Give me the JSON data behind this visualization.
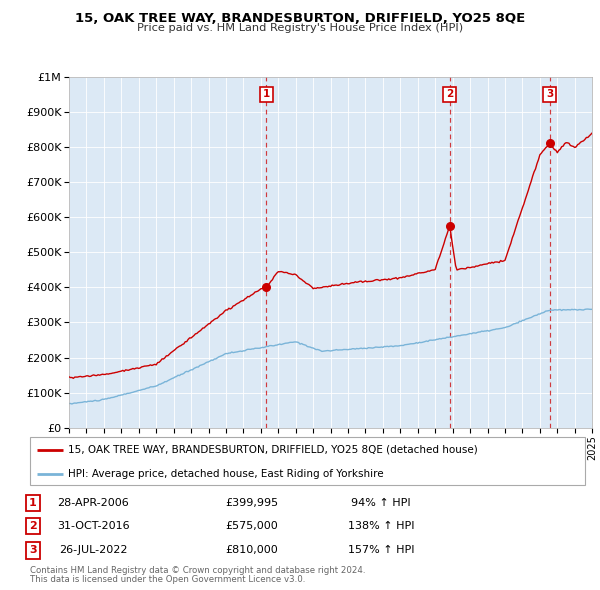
{
  "title": "15, OAK TREE WAY, BRANDESBURTON, DRIFFIELD, YO25 8QE",
  "subtitle": "Price paid vs. HM Land Registry's House Price Index (HPI)",
  "background_color": "#dce9f5",
  "hpi_line_color": "#7ab4d8",
  "price_line_color": "#cc0000",
  "marker_color": "#cc0000",
  "ymax": 1000000,
  "ytick_vals": [
    0,
    100000,
    200000,
    300000,
    400000,
    500000,
    600000,
    700000,
    800000,
    900000,
    1000000
  ],
  "ytick_labels": [
    "£0",
    "£100K",
    "£200K",
    "£300K",
    "£400K",
    "£500K",
    "£600K",
    "£700K",
    "£800K",
    "£900K",
    "£1M"
  ],
  "xmin": 1995,
  "xmax": 2025,
  "transactions": [
    {
      "label": "1",
      "date": "28-APR-2006",
      "year": 2006.32,
      "price": 399995,
      "price_str": "£399,995",
      "pct": "94%",
      "dir": "↑"
    },
    {
      "label": "2",
      "date": "31-OCT-2016",
      "year": 2016.83,
      "price": 575000,
      "price_str": "£575,000",
      "pct": "138%",
      "dir": "↑"
    },
    {
      "label": "3",
      "date": "26-JUL-2022",
      "year": 2022.56,
      "price": 810000,
      "price_str": "£810,000",
      "pct": "157%",
      "dir": "↑"
    }
  ],
  "legend_property_label": "15, OAK TREE WAY, BRANDESBURTON, DRIFFIELD, YO25 8QE (detached house)",
  "legend_hpi_label": "HPI: Average price, detached house, East Riding of Yorkshire",
  "footer1": "Contains HM Land Registry data © Crown copyright and database right 2024.",
  "footer2": "This data is licensed under the Open Government Licence v3.0."
}
